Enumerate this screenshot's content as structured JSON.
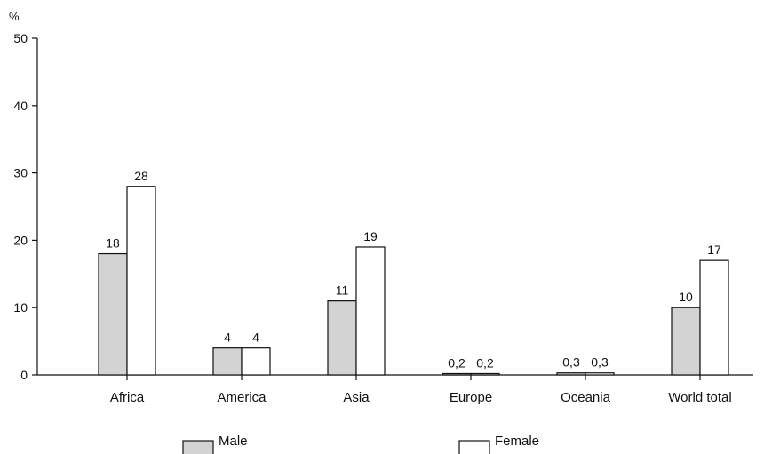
{
  "chart_data": {
    "type": "bar",
    "ylabel": "%",
    "ylim": [
      0,
      50
    ],
    "yticks": [
      0,
      10,
      20,
      30,
      40,
      50
    ],
    "categories": [
      "Africa",
      "America",
      "Asia",
      "Europe",
      "Oceania",
      "World total"
    ],
    "series": [
      {
        "name": "Male",
        "values": [
          18,
          4,
          11,
          0.2,
          0.3,
          10
        ],
        "labels": [
          "18",
          "4",
          "11",
          "0,2",
          "0,3",
          "10"
        ],
        "color": "#d3d3d3"
      },
      {
        "name": "Female",
        "values": [
          28,
          4,
          19,
          0.2,
          0.3,
          17
        ],
        "labels": [
          "28",
          "4",
          "19",
          "0,2",
          "0,3",
          "17"
        ],
        "color": "#ffffff"
      }
    ],
    "grid": false,
    "legend": "bottom"
  }
}
